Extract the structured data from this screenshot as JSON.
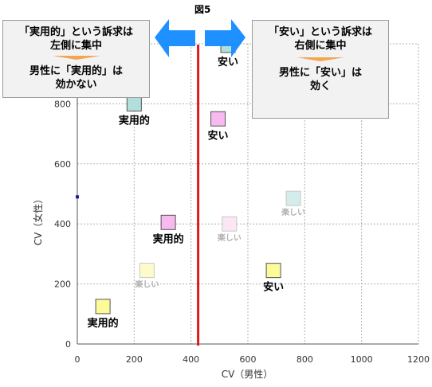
{
  "figure_title": "図5",
  "callouts": {
    "left": {
      "line1": "「実用的」という訴求は",
      "line2": "左側に集中",
      "line3": "男性に「実用的」は",
      "line4": "効かない"
    },
    "right": {
      "line1": "「安い」という訴求は",
      "line2": "右側に集中",
      "line3": "男性に「安い」は",
      "line4": "効く"
    }
  },
  "colors": {
    "vline": "#e01a1a",
    "arrow": "#1e90ff",
    "grid": "#b0b0b0",
    "callout_arrow": "#f3a64f"
  },
  "chart_data": {
    "type": "scatter",
    "xlabel": "CV（男性）",
    "ylabel": "CV（女性）",
    "xlim": [
      0,
      1200
    ],
    "ylim": [
      0,
      1000
    ],
    "x_ticks": [
      0,
      200,
      400,
      600,
      800,
      1000,
      1200
    ],
    "y_ticks": [
      0,
      200,
      400,
      600,
      800
    ],
    "grid": true,
    "vertical_line_x": 425,
    "points": [
      {
        "x": 530,
        "y": 995,
        "label": "安い",
        "color": "#b3dede"
      },
      {
        "x": 200,
        "y": 800,
        "label": "実用的",
        "color": "#b3dede"
      },
      {
        "x": 495,
        "y": 750,
        "label": "安い",
        "color": "#f8b8f0"
      },
      {
        "x": 760,
        "y": 485,
        "label": "楽しい",
        "color": "#d5ecec",
        "faded": true
      },
      {
        "x": 320,
        "y": 405,
        "label": "実用的",
        "color": "#f8b8f0"
      },
      {
        "x": 535,
        "y": 400,
        "label": "楽しい",
        "color": "#fbe6f6",
        "faded": true
      },
      {
        "x": 245,
        "y": 245,
        "label": "楽しい",
        "color": "#fdfbcc",
        "faded": true
      },
      {
        "x": 690,
        "y": 245,
        "label": "安い",
        "color": "#fdfb99"
      },
      {
        "x": 90,
        "y": 125,
        "label": "実用的",
        "color": "#fdfb99"
      }
    ]
  }
}
